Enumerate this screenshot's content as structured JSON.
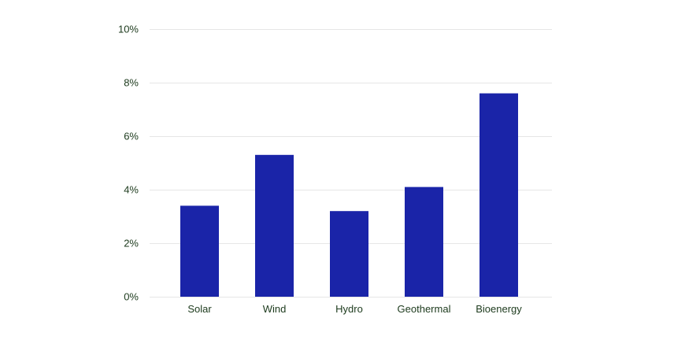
{
  "chart_data": {
    "type": "bar",
    "categories": [
      "Solar",
      "Wind",
      "Hydro",
      "Geothermal",
      "Bioenergy"
    ],
    "values": [
      3.4,
      5.3,
      3.2,
      4.1,
      7.6
    ],
    "unit": "%",
    "ylim": [
      0,
      10
    ],
    "yticks": [
      0,
      2,
      4,
      6,
      8,
      10
    ],
    "ytick_labels": [
      "0%",
      "2%",
      "4%",
      "6%",
      "8%",
      "10%"
    ],
    "grid": true,
    "legend": "none",
    "title": "",
    "xlabel": "",
    "ylabel": "",
    "colors": {
      "bar": "#1a24a8",
      "grid": "#e6e6e6",
      "text": "#1c3a1c"
    }
  }
}
